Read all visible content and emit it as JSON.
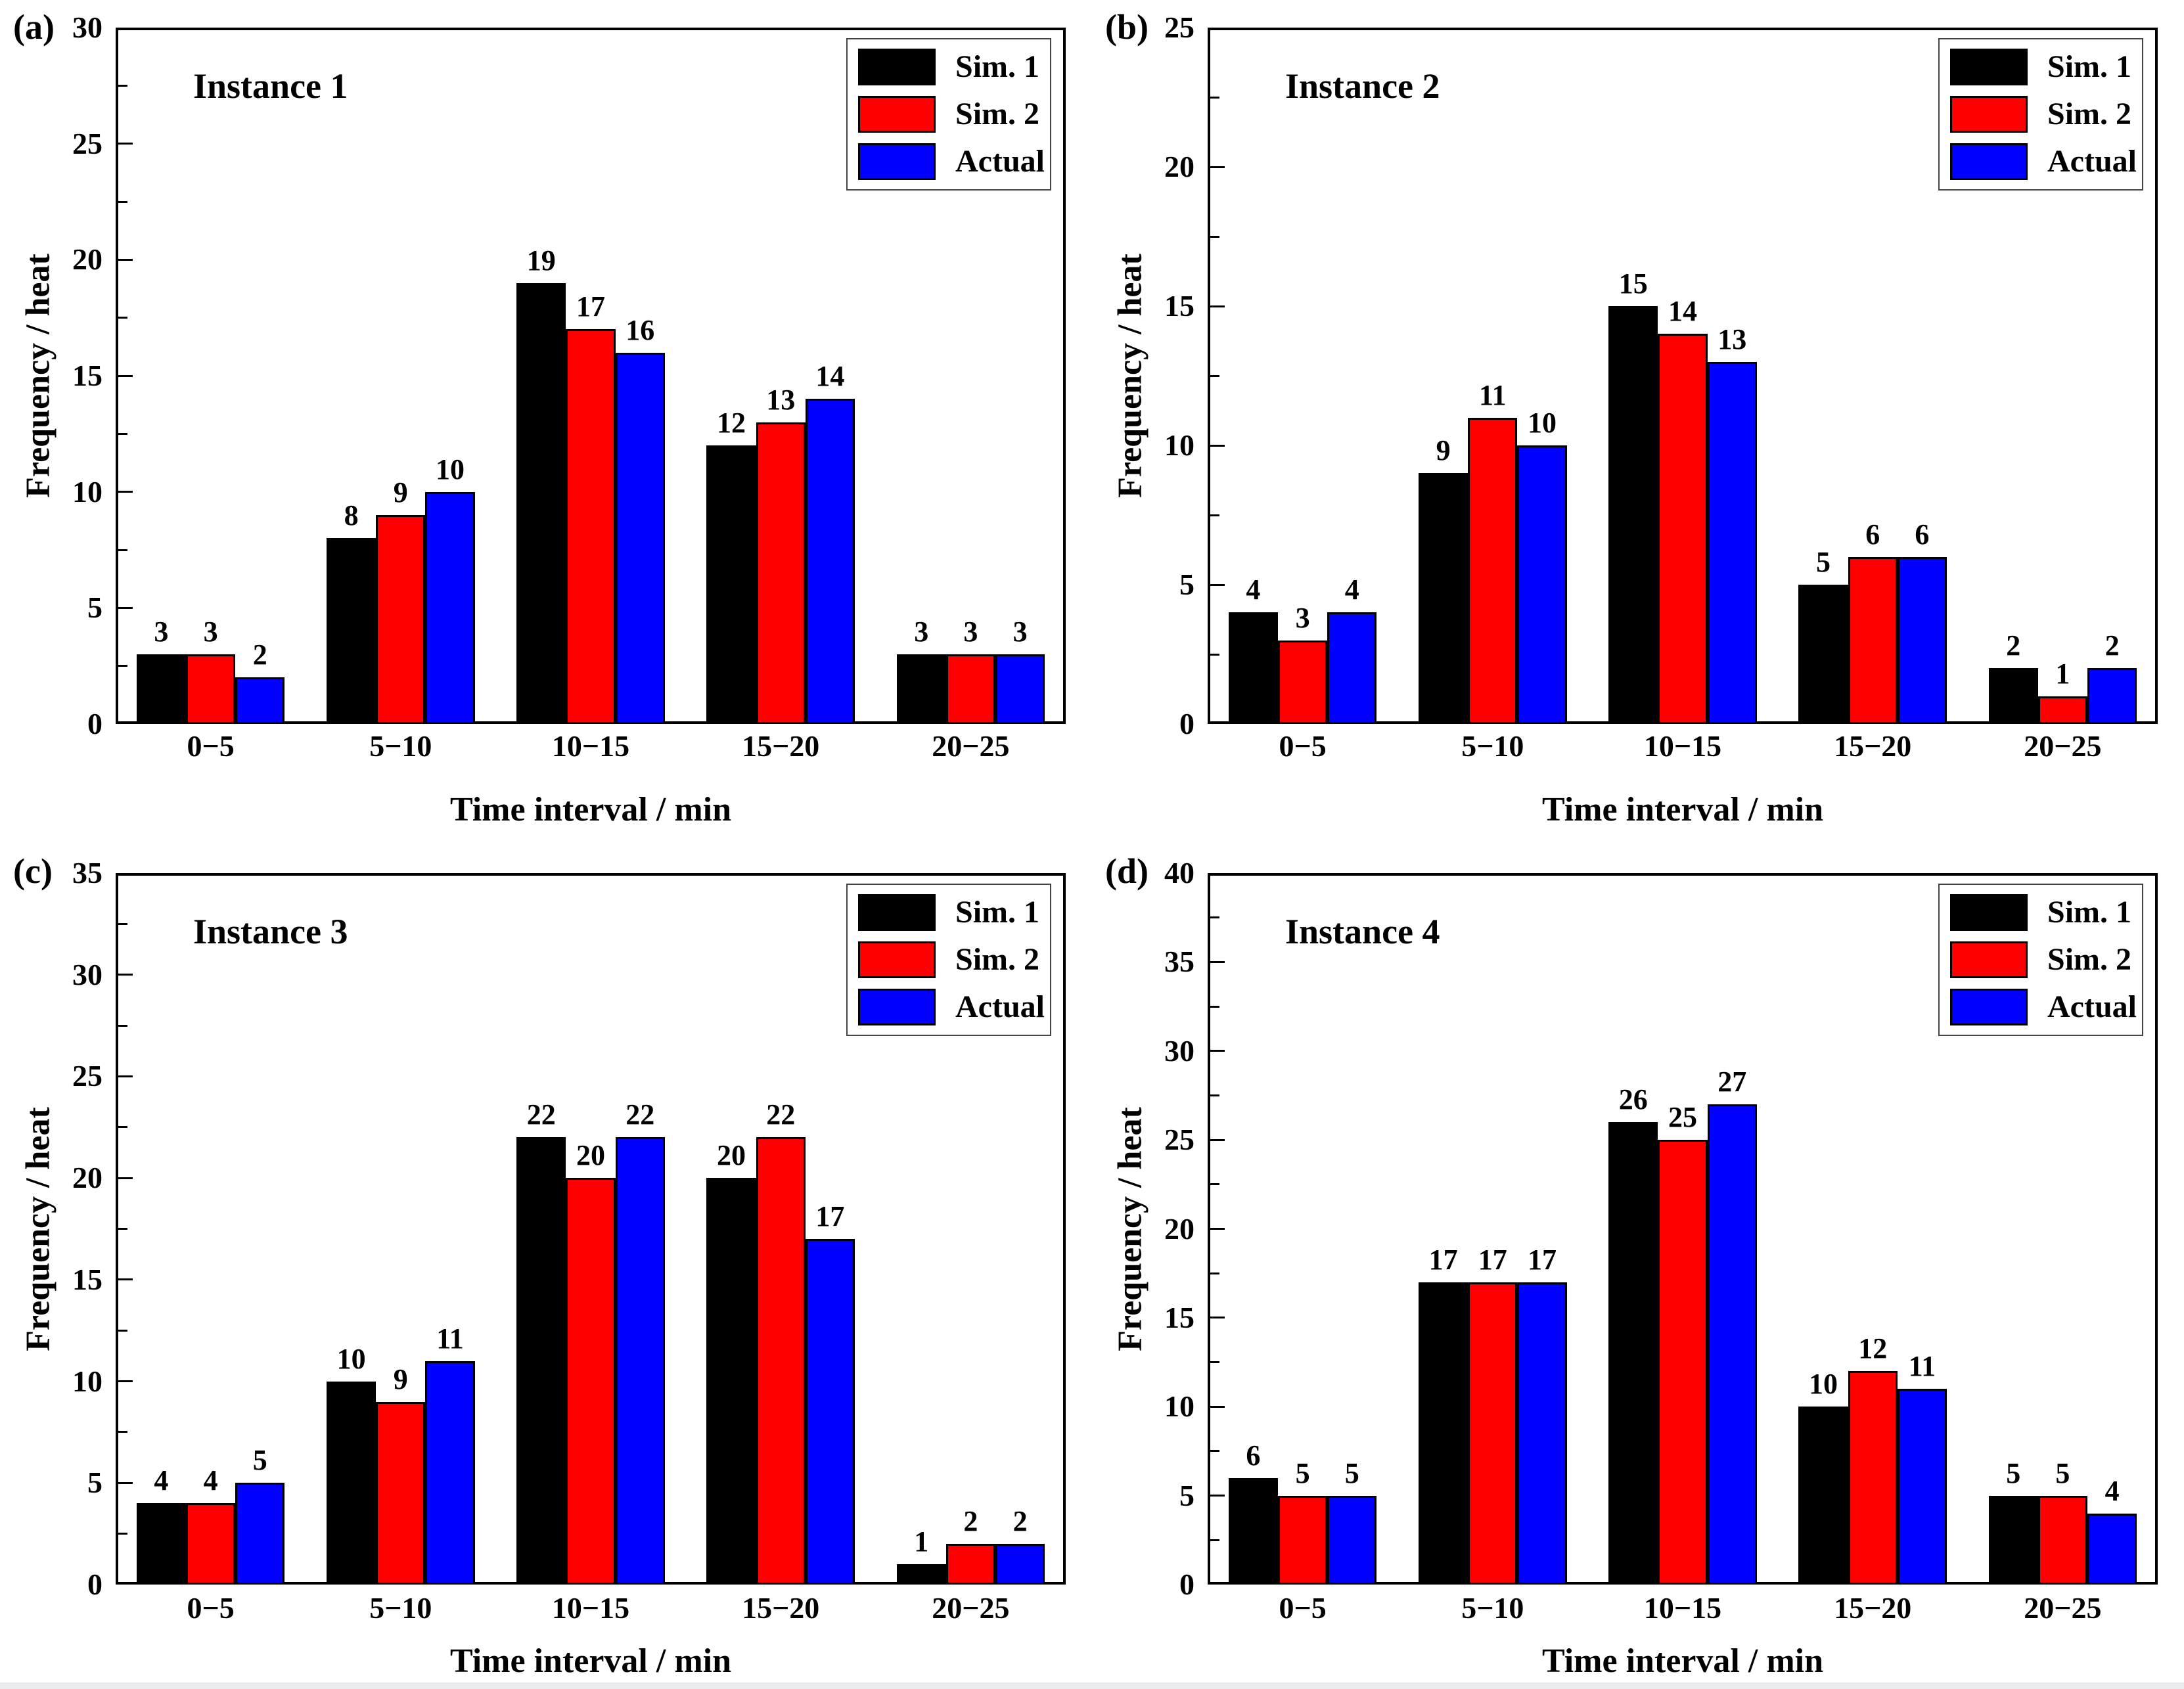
{
  "figure": {
    "background": "#ffffff",
    "axis_color": "#000000",
    "legend_border_color": "#444444",
    "bottom_strip_color": "#e9ecef"
  },
  "legend": {
    "entries": [
      {
        "label": "Sim. 1",
        "color": "#000000"
      },
      {
        "label": "Sim. 2",
        "color": "#ff0000"
      },
      {
        "label": "Actual",
        "color": "#0000ff"
      }
    ]
  },
  "chart_data": [
    {
      "type": "bar",
      "panel_label": "(a)",
      "title": "Instance 1",
      "xlabel": "Time interval / min",
      "ylabel": "Frequency / heat",
      "categories": [
        "0−5",
        "5−10",
        "10−15",
        "15−20",
        "20−25"
      ],
      "ylim": [
        0,
        30
      ],
      "ytick_step": 5,
      "yminor_step": 2.5,
      "yticks": [
        "0",
        "5",
        "10",
        "15",
        "20",
        "25",
        "30"
      ],
      "grid": false,
      "legend_position": "top-right",
      "series": [
        {
          "name": "Sim. 1",
          "color": "#000000",
          "values": [
            3,
            8,
            19,
            12,
            3
          ]
        },
        {
          "name": "Sim. 2",
          "color": "#ff0000",
          "values": [
            3,
            9,
            17,
            13,
            3
          ]
        },
        {
          "name": "Actual",
          "color": "#0000ff",
          "values": [
            2,
            10,
            16,
            14,
            3
          ]
        }
      ]
    },
    {
      "type": "bar",
      "panel_label": "(b)",
      "title": "Instance 2",
      "xlabel": "Time interval / min",
      "ylabel": "Frequency / heat",
      "categories": [
        "0−5",
        "5−10",
        "10−15",
        "15−20",
        "20−25"
      ],
      "ylim": [
        0,
        25
      ],
      "ytick_step": 5,
      "yminor_step": 2.5,
      "yticks": [
        "0",
        "5",
        "10",
        "15",
        "20",
        "25"
      ],
      "grid": false,
      "legend_position": "top-right",
      "series": [
        {
          "name": "Sim. 1",
          "color": "#000000",
          "values": [
            4,
            9,
            15,
            5,
            2
          ]
        },
        {
          "name": "Sim. 2",
          "color": "#ff0000",
          "values": [
            3,
            11,
            14,
            6,
            1
          ]
        },
        {
          "name": "Actual",
          "color": "#0000ff",
          "values": [
            4,
            10,
            13,
            6,
            2
          ]
        }
      ]
    },
    {
      "type": "bar",
      "panel_label": "(c)",
      "title": "Instance 3",
      "xlabel": "Time interval / min",
      "ylabel": "Frequency / heat",
      "categories": [
        "0−5",
        "5−10",
        "10−15",
        "15−20",
        "20−25"
      ],
      "ylim": [
        0,
        35
      ],
      "ytick_step": 5,
      "yminor_step": 2.5,
      "yticks": [
        "0",
        "5",
        "10",
        "15",
        "20",
        "25",
        "30",
        "35"
      ],
      "grid": false,
      "legend_position": "top-right",
      "series": [
        {
          "name": "Sim. 1",
          "color": "#000000",
          "values": [
            4,
            10,
            22,
            20,
            1
          ]
        },
        {
          "name": "Sim. 2",
          "color": "#ff0000",
          "values": [
            4,
            9,
            20,
            22,
            2
          ]
        },
        {
          "name": "Actual",
          "color": "#0000ff",
          "values": [
            5,
            11,
            22,
            17,
            2
          ]
        }
      ]
    },
    {
      "type": "bar",
      "panel_label": "(d)",
      "title": "Instance 4",
      "xlabel": "Time interval / min",
      "ylabel": "Frequency / heat",
      "categories": [
        "0−5",
        "5−10",
        "10−15",
        "15−20",
        "20−25"
      ],
      "ylim": [
        0,
        40
      ],
      "ytick_step": 5,
      "yminor_step": 2.5,
      "yticks": [
        "0",
        "5",
        "10",
        "15",
        "20",
        "25",
        "30",
        "35",
        "40"
      ],
      "grid": false,
      "legend_position": "top-right",
      "series": [
        {
          "name": "Sim. 1",
          "color": "#000000",
          "values": [
            6,
            17,
            26,
            10,
            5
          ]
        },
        {
          "name": "Sim. 2",
          "color": "#ff0000",
          "values": [
            5,
            17,
            25,
            12,
            5
          ]
        },
        {
          "name": "Actual",
          "color": "#0000ff",
          "values": [
            5,
            17,
            27,
            11,
            4
          ]
        }
      ]
    }
  ]
}
